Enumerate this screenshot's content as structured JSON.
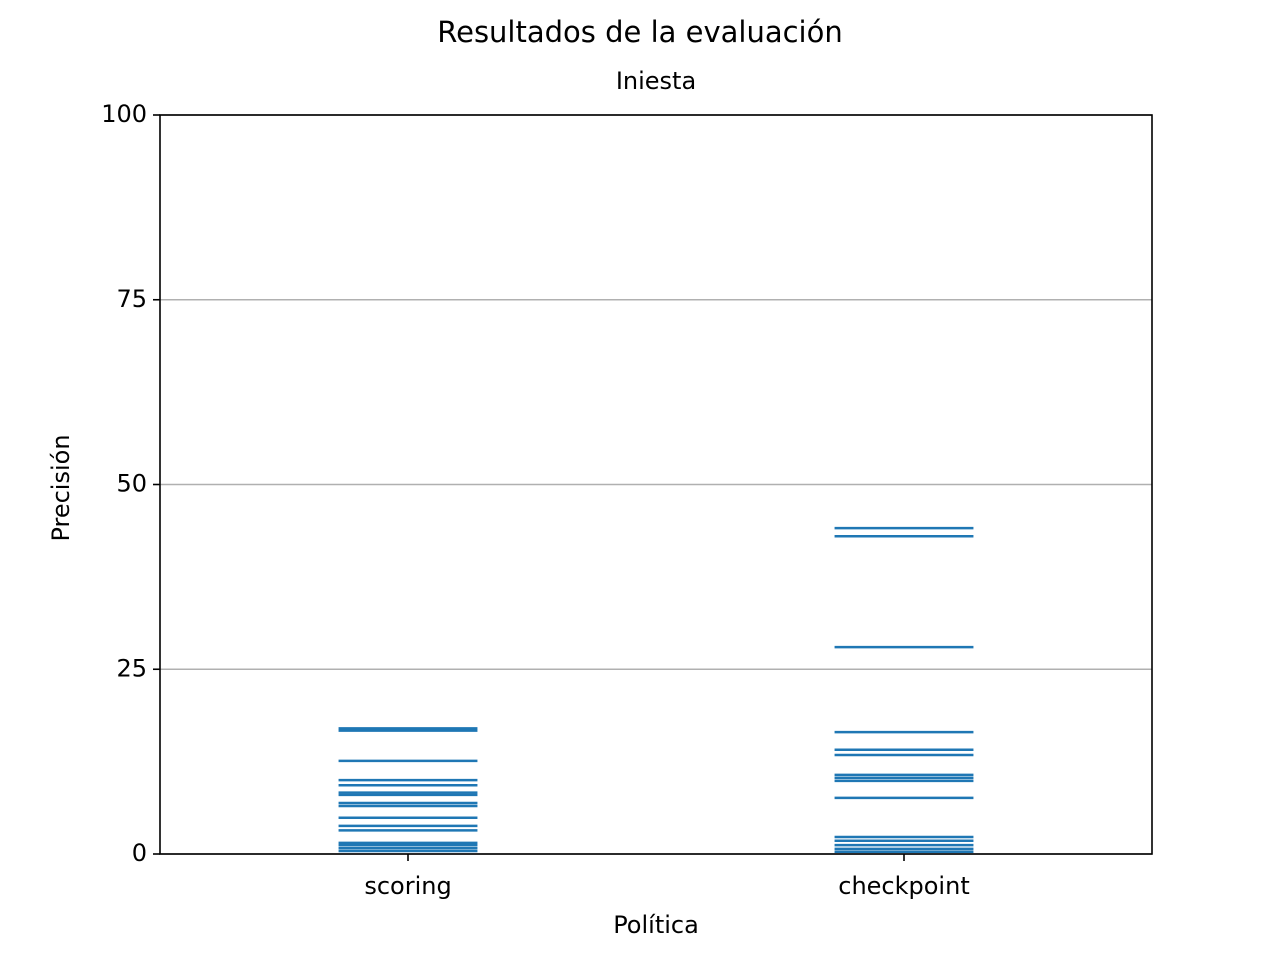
{
  "chart_data": {
    "type": "strip",
    "title": "Resultados de la evaluación",
    "subtitle": "Iniesta",
    "xlabel": "Política",
    "ylabel": "Precisión",
    "categories": [
      "scoring",
      "checkpoint"
    ],
    "values": [
      [
        17.0,
        16.7,
        12.6,
        10.0,
        9.3,
        8.3,
        8.0,
        6.9,
        6.5,
        4.9,
        3.8,
        3.2,
        1.5,
        1.2,
        0.8,
        0.4
      ],
      [
        44.1,
        43.0,
        28.0,
        16.5,
        14.1,
        13.4,
        10.7,
        10.3,
        9.9,
        7.6,
        2.3,
        1.8,
        1.2,
        0.7,
        0.3
      ]
    ],
    "color": "#1f77b4",
    "ylim": [
      0,
      100
    ],
    "yticks": [
      0,
      25,
      50,
      75,
      100
    ],
    "grid": true
  }
}
